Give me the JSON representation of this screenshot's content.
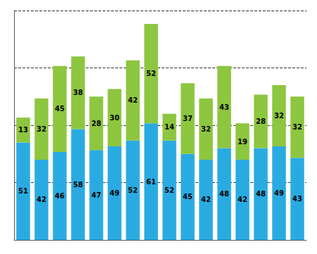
{
  "chart_data": {
    "type": "bar",
    "stacked": true,
    "categories": [
      null,
      null,
      null,
      null,
      null,
      null,
      null,
      null,
      null,
      null,
      null,
      null,
      null,
      null,
      null,
      null
    ],
    "series": [
      {
        "color": "#29ABE2",
        "values": [
          51,
          42,
          46,
          58,
          47,
          49,
          52,
          61,
          52,
          45,
          42,
          48,
          42,
          48,
          49,
          43
        ]
      },
      {
        "color": "#8DC63F",
        "values": [
          13,
          32,
          45,
          38,
          28,
          30,
          42,
          52,
          14,
          37,
          32,
          43,
          19,
          28,
          32,
          32
        ]
      }
    ],
    "ylim": [
      0,
      120
    ],
    "yticks": [
      0,
      30,
      60,
      90,
      120
    ],
    "grid": true,
    "data_labels": true,
    "tick_labels": false
  }
}
